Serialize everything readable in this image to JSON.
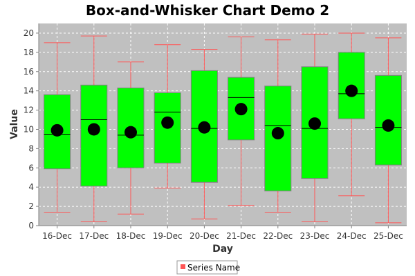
{
  "chart_data": {
    "type": "box",
    "title": "Box-and-Whisker Chart Demo 2",
    "xlabel": "Day",
    "ylabel": "Value",
    "ylim": [
      0,
      21
    ],
    "yticks": [
      0,
      2,
      4,
      6,
      8,
      10,
      12,
      14,
      16,
      18,
      20
    ],
    "grid": true,
    "categories": [
      "16-Dec",
      "17-Dec",
      "18-Dec",
      "19-Dec",
      "20-Dec",
      "21-Dec",
      "22-Dec",
      "23-Dec",
      "24-Dec",
      "25-Dec"
    ],
    "series": [
      {
        "name": "Series Name",
        "boxes": [
          {
            "min": 1.4,
            "q1": 5.9,
            "median": 9.5,
            "q3": 13.6,
            "max": 19.0,
            "mean": 9.9
          },
          {
            "min": 0.4,
            "q1": 4.1,
            "median": 11.0,
            "q3": 14.6,
            "max": 19.7,
            "mean": 10.0
          },
          {
            "min": 1.2,
            "q1": 6.0,
            "median": 9.4,
            "q3": 14.3,
            "max": 17.0,
            "mean": 9.7
          },
          {
            "min": 3.9,
            "q1": 6.5,
            "median": 11.8,
            "q3": 13.8,
            "max": 18.8,
            "mean": 10.7
          },
          {
            "min": 0.7,
            "q1": 4.5,
            "median": 10.1,
            "q3": 16.1,
            "max": 18.3,
            "mean": 10.2
          },
          {
            "min": 2.1,
            "q1": 8.9,
            "median": 13.3,
            "q3": 15.4,
            "max": 19.6,
            "mean": 12.1
          },
          {
            "min": 1.4,
            "q1": 3.6,
            "median": 10.4,
            "q3": 14.5,
            "max": 19.3,
            "mean": 9.6
          },
          {
            "min": 0.4,
            "q1": 4.9,
            "median": 10.1,
            "q3": 16.5,
            "max": 19.9,
            "mean": 10.6
          },
          {
            "min": 3.1,
            "q1": 11.1,
            "median": 13.7,
            "q3": 18.0,
            "max": 20.0,
            "mean": 14.0
          },
          {
            "min": 0.3,
            "q1": 6.3,
            "median": 10.2,
            "q3": 15.6,
            "max": 19.5,
            "mean": 10.4
          }
        ]
      }
    ],
    "legend": {
      "position": "bottom",
      "label": "Series Name"
    },
    "colors": {
      "plot_background": "#c0c0c0",
      "box_fill": "#00ff00",
      "box_stroke": "#808080",
      "whisker": "#ff5555",
      "median": "#000000",
      "mean": "#000000",
      "grid": "#ffffff"
    }
  }
}
